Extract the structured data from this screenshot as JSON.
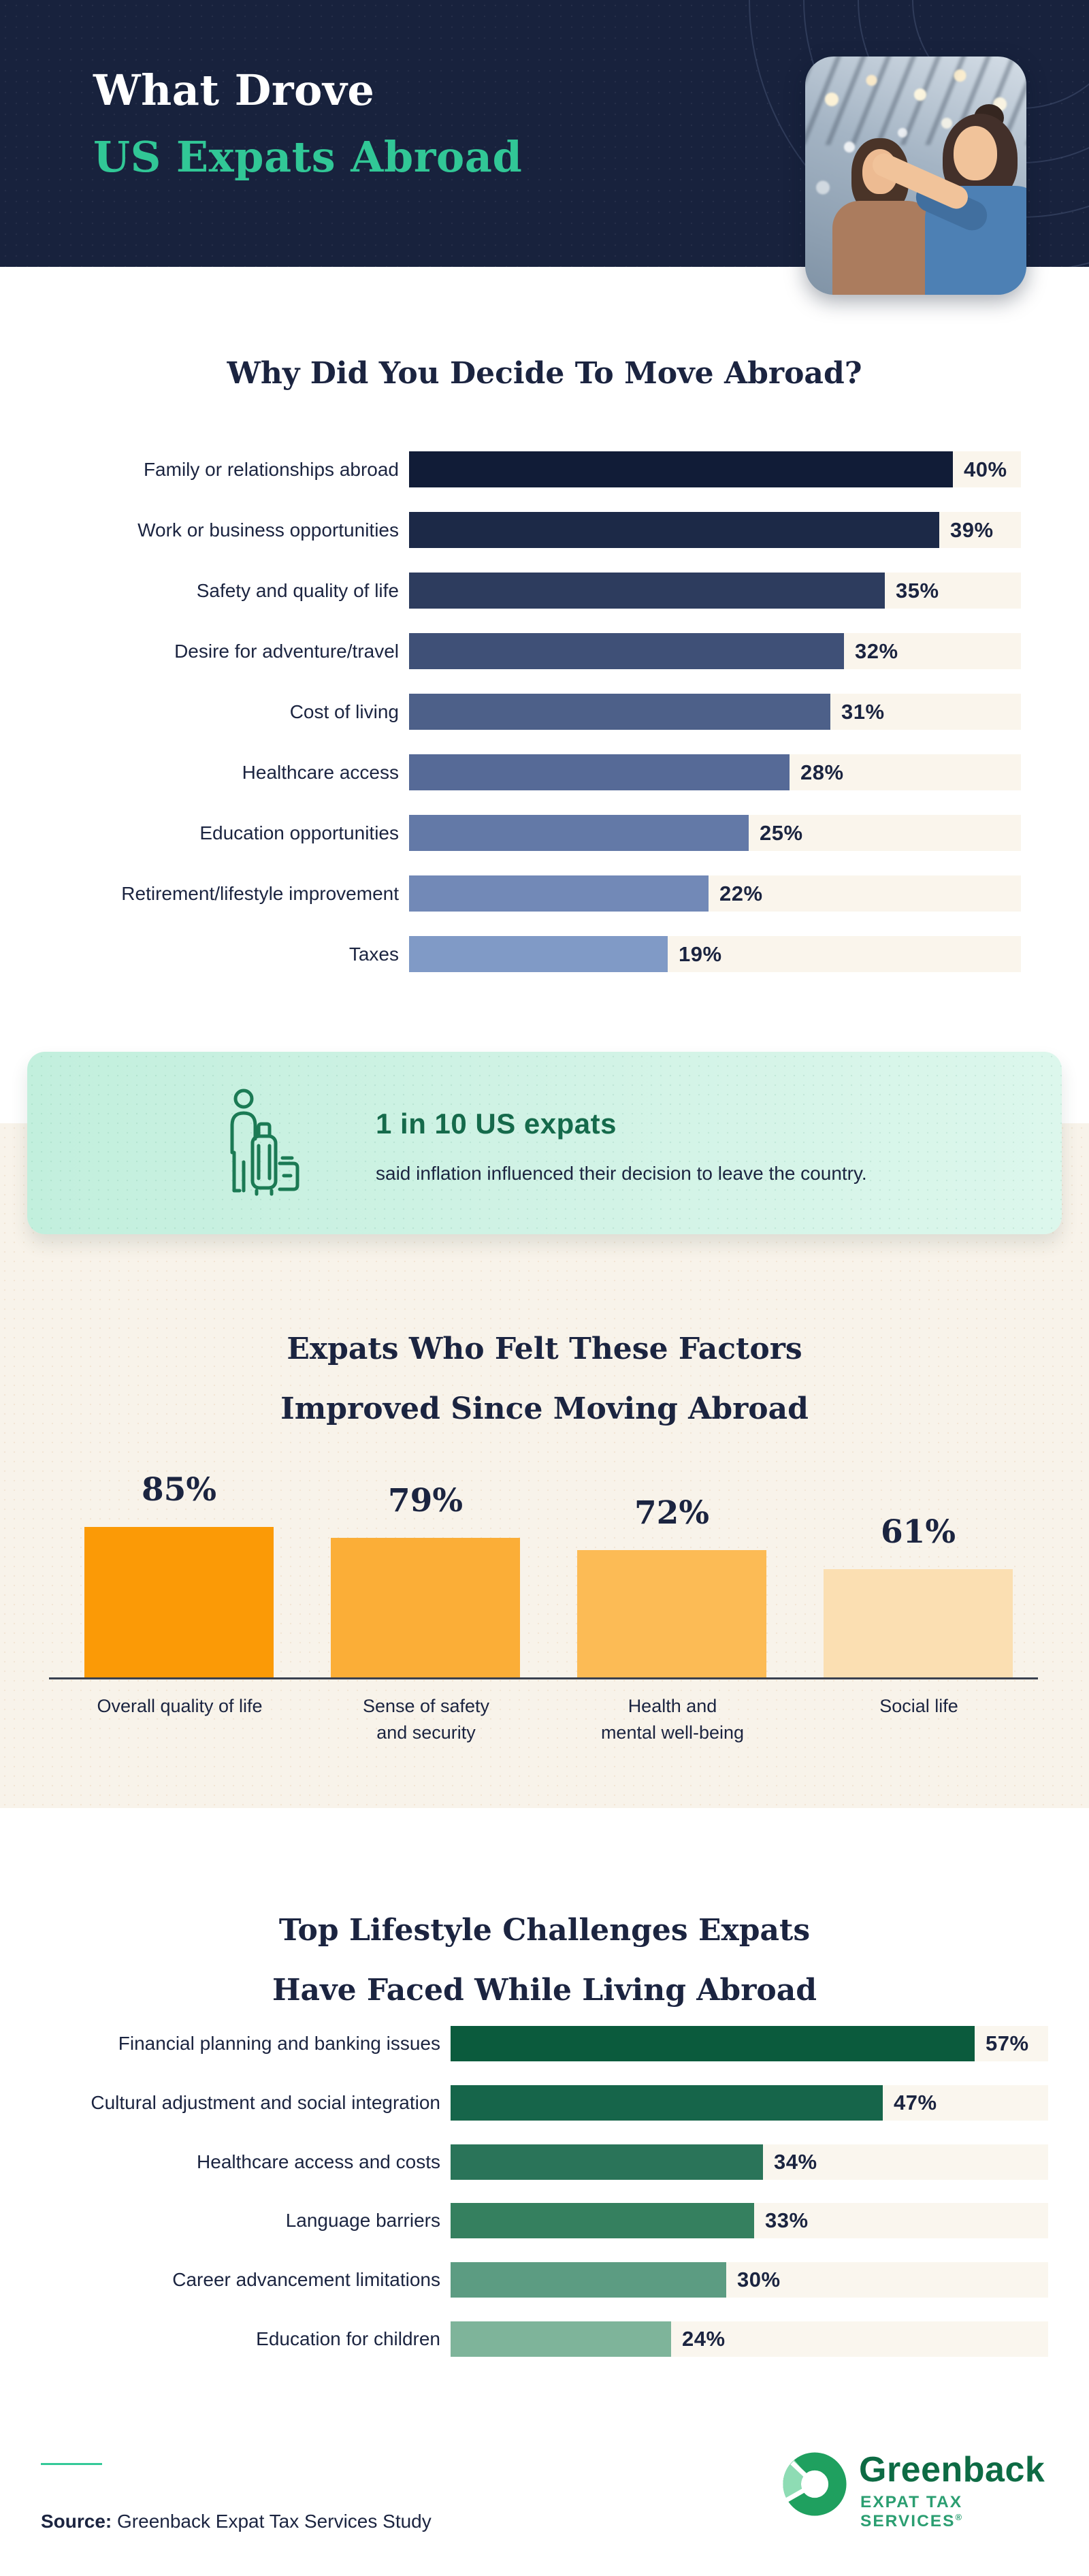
{
  "header": {
    "title_line1": "What Drove",
    "title_line2": "US Expats Abroad",
    "accent_color": "#31c796",
    "background_color": "#18223d",
    "photo_icon": "two-travelers-pointing-photo"
  },
  "chart_data": [
    {
      "type": "bar",
      "orientation": "horizontal",
      "title": "Why Did You Decide To Move Abroad?",
      "categories": [
        "Family or relationships abroad",
        "Work or business opportunities",
        "Safety and quality of life",
        "Desire for adventure/travel",
        "Cost of living",
        "Healthcare access",
        "Education opportunities",
        "Retirement/lifestyle improvement",
        "Taxes"
      ],
      "values": [
        40,
        39,
        35,
        32,
        31,
        28,
        25,
        22,
        19
      ],
      "value_labels": [
        "40%",
        "39%",
        "35%",
        "32%",
        "31%",
        "28%",
        "25%",
        "22%",
        "19%"
      ],
      "bar_colors": [
        "#111c37",
        "#1c2947",
        "#2d3c5e",
        "#3f5077",
        "#4d6089",
        "#566a97",
        "#6379a7",
        "#7289b7",
        "#809ac6"
      ],
      "track_color": "#faf5ec",
      "xlim": [
        0,
        45
      ],
      "grid": false,
      "legend": "none"
    },
    {
      "type": "bar",
      "orientation": "vertical",
      "title": "Expats Who Felt These Factors Improved Since Moving Abroad",
      "title_lines": [
        "Expats Who Felt These Factors",
        "Improved Since Moving Abroad"
      ],
      "categories": [
        "Overall quality of life",
        "Sense of safety and security",
        "Health and mental well-being",
        "Social life"
      ],
      "category_lines": [
        [
          "Overall quality of life"
        ],
        [
          "Sense of safety",
          "and security"
        ],
        [
          "Health and",
          "mental well-being"
        ],
        [
          "Social life"
        ]
      ],
      "values": [
        85,
        79,
        72,
        61
      ],
      "value_labels": [
        "85%",
        "79%",
        "72%",
        "61%"
      ],
      "bar_colors": [
        "#fb9a06",
        "#fbae37",
        "#fcbb55",
        "#fbdfb2"
      ],
      "background_color": "#f8f3ea",
      "ylim": [
        0,
        100
      ],
      "grid": false,
      "legend": "none"
    },
    {
      "type": "bar",
      "orientation": "horizontal",
      "title": "Top Lifestyle Challenges Expats Have Faced While Living Abroad",
      "title_lines": [
        "Top Lifestyle Challenges Expats",
        "Have Faced While Living Abroad"
      ],
      "categories": [
        "Financial planning and banking issues",
        "Cultural adjustment and social integration",
        "Healthcare access and costs",
        "Language barriers",
        "Career advancement limitations",
        "Education for children"
      ],
      "values": [
        57,
        47,
        34,
        33,
        30,
        24
      ],
      "value_labels": [
        "57%",
        "47%",
        "34%",
        "33%",
        "30%",
        "24%"
      ],
      "bar_colors": [
        "#0b5b3d",
        "#16654a",
        "#2a7459",
        "#35805f",
        "#5c9c82",
        "#7eb49a"
      ],
      "track_color": "#faf6ee",
      "xlim": [
        0,
        65
      ],
      "grid": false,
      "legend": "none"
    }
  ],
  "callout": {
    "icon": "traveler-with-luggage-icon",
    "heading": "1 in 10 US expats",
    "text": "said inflation influenced their decision to leave the country.",
    "heading_color": "#156a4b",
    "background_color": "#c9f0e1"
  },
  "footer": {
    "source_label": "Source:",
    "source_text": " Greenback Expat Tax Services Study",
    "brand_name": "Greenback",
    "brand_subtitle": "EXPAT TAX SERVICES",
    "registered_mark": "®",
    "brand_green": "#1fa05f"
  }
}
